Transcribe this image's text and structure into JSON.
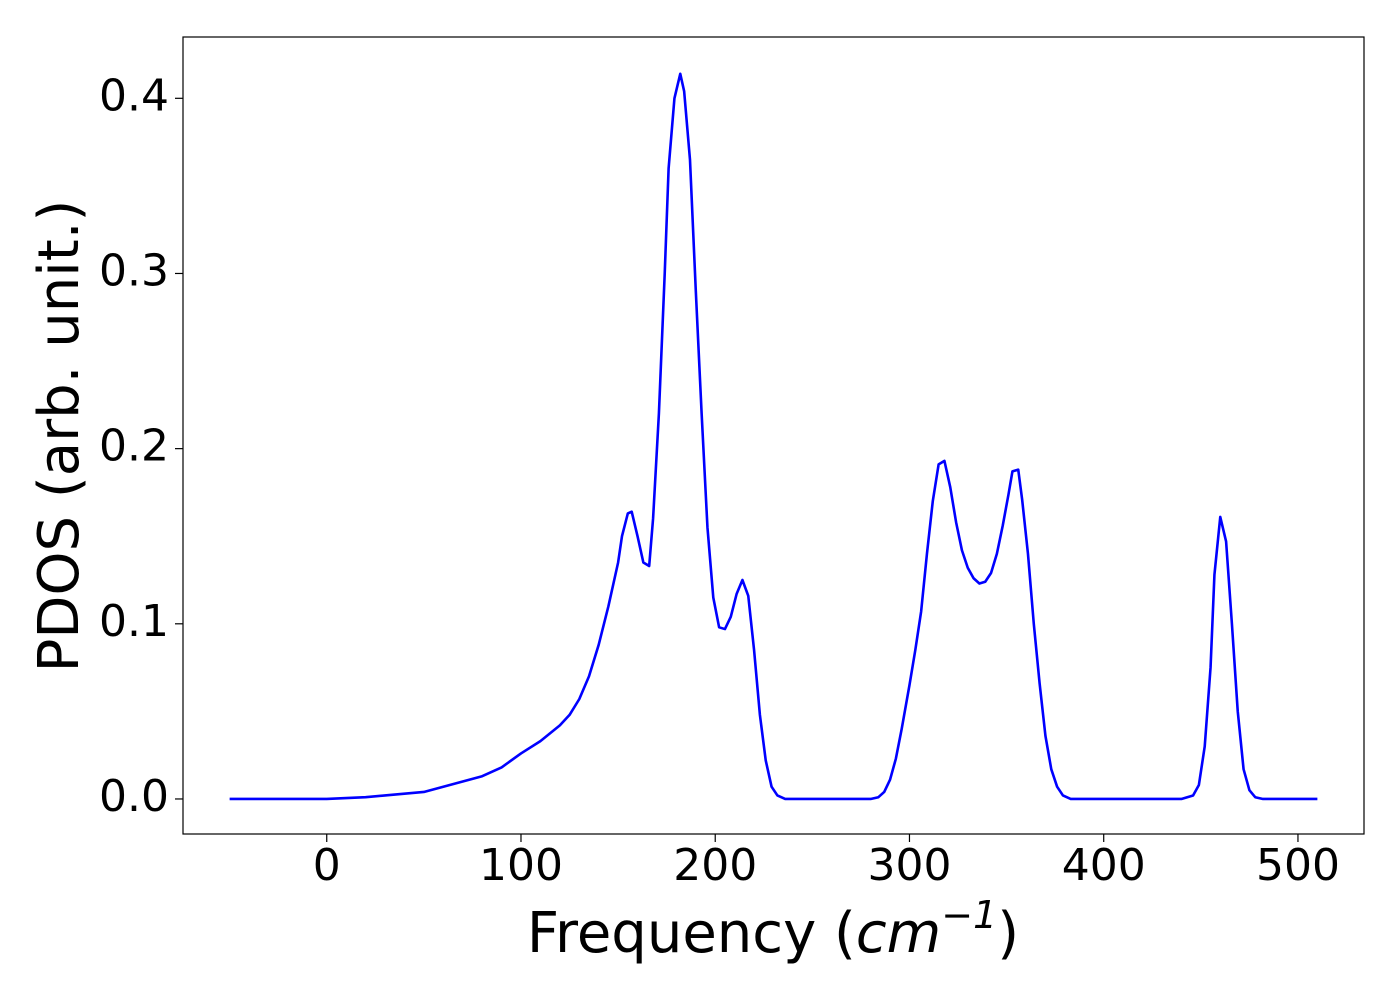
{
  "chart_data": {
    "type": "line",
    "xlabel": {
      "prefix": "Frequency (",
      "unit": "cm",
      "exponent": "−1",
      "suffix": ")"
    },
    "ylabel": "PDOS (arb. unit.)",
    "color": "#0000ff",
    "xlim": [
      -74,
      534
    ],
    "ylim": [
      -0.02,
      0.435
    ],
    "xticks": [
      0,
      100,
      200,
      300,
      400,
      500
    ],
    "yticks": [
      {
        "value": 0,
        "label": "0.0"
      },
      0.1,
      0.2,
      0.3,
      0.4
    ],
    "grid": false,
    "x": [
      -50,
      -40,
      -30,
      -20,
      -10,
      0,
      10,
      20,
      30,
      40,
      50,
      60,
      70,
      80,
      90,
      100,
      110,
      120,
      125,
      130,
      135,
      140,
      145,
      150,
      152,
      155,
      157,
      160,
      163,
      166,
      168,
      171,
      174,
      176,
      179,
      182,
      184,
      187,
      190,
      193,
      196,
      199,
      202,
      205,
      208,
      211,
      214,
      217,
      220,
      223,
      226,
      229,
      232,
      236,
      250,
      265,
      280,
      284,
      287,
      290,
      293,
      296,
      300,
      303,
      306,
      309,
      312,
      315,
      318,
      321,
      324,
      327,
      330,
      333,
      336,
      339,
      342,
      345,
      348,
      351,
      353,
      356,
      358,
      361,
      364,
      367,
      370,
      373,
      376,
      379,
      383,
      400,
      420,
      440,
      446,
      449,
      452,
      455,
      457,
      460,
      463,
      466,
      469,
      472,
      475,
      478,
      482,
      495,
      510
    ],
    "values": [
      0,
      0,
      0,
      0,
      0,
      0,
      0.0005,
      0.001,
      0.002,
      0.003,
      0.004,
      0.007,
      0.01,
      0.013,
      0.018,
      0.026,
      0.033,
      0.042,
      0.048,
      0.057,
      0.07,
      0.088,
      0.11,
      0.135,
      0.15,
      0.163,
      0.164,
      0.15,
      0.135,
      0.133,
      0.16,
      0.22,
      0.3,
      0.36,
      0.4,
      0.414,
      0.404,
      0.365,
      0.29,
      0.22,
      0.155,
      0.115,
      0.098,
      0.097,
      0.104,
      0.117,
      0.125,
      0.116,
      0.085,
      0.048,
      0.022,
      0.007,
      0.002,
      0,
      0,
      0,
      0,
      0.001,
      0.004,
      0.011,
      0.023,
      0.04,
      0.065,
      0.085,
      0.107,
      0.14,
      0.17,
      0.191,
      0.193,
      0.178,
      0.158,
      0.142,
      0.132,
      0.126,
      0.123,
      0.124,
      0.129,
      0.14,
      0.156,
      0.174,
      0.187,
      0.188,
      0.171,
      0.14,
      0.1,
      0.066,
      0.036,
      0.017,
      0.007,
      0.002,
      0,
      0,
      0,
      0,
      0.002,
      0.008,
      0.03,
      0.075,
      0.128,
      0.161,
      0.147,
      0.1,
      0.05,
      0.017,
      0.005,
      0.001,
      0,
      0,
      0
    ]
  }
}
